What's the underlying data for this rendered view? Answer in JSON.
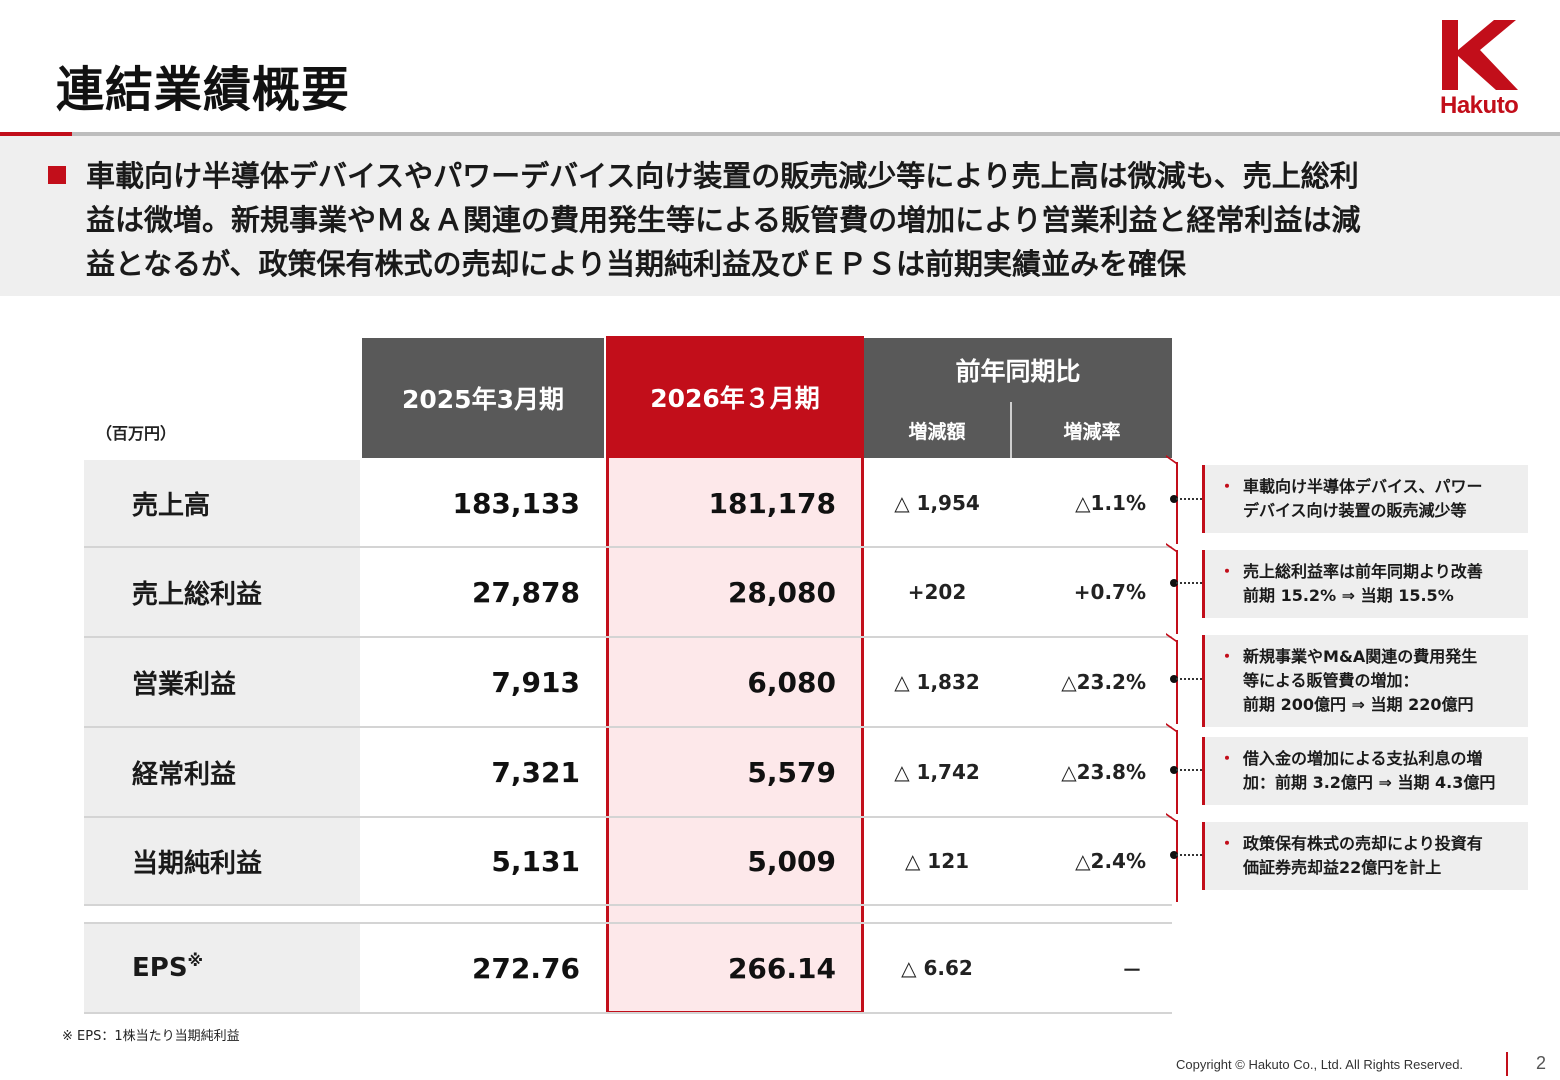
{
  "header": {
    "title": "連結業績概要",
    "logo_text": "Hakuto"
  },
  "summary": {
    "lines": [
      "車載向け半導体デバイスやパワーデバイス向け装置の販売減少等により売上高は微減も、売上総利",
      "益は微増。新規事業やＭ＆Ａ関連の費用発生等による販管費の増加により営業利益と経常利益は減",
      "益となるが、政策保有株式の売却により当期純利益及びＥＰＳは前期実績並みを確保"
    ]
  },
  "table": {
    "unit": "（百万円）",
    "headers": {
      "fy2025": "2025年3月期",
      "fy2026": "2026年３月期",
      "yoy": "前年同期比",
      "change_amount": "増減額",
      "change_rate": "増減率"
    },
    "rows": [
      {
        "label": "売上高",
        "fy2025": "183,133",
        "fy2026": "181,178",
        "change_amount": "△ 1,954",
        "change_rate": "△1.1%"
      },
      {
        "label": "売上総利益",
        "fy2025": "27,878",
        "fy2026": "28,080",
        "change_amount": "+202",
        "change_rate": "+0.7%"
      },
      {
        "label": "営業利益",
        "fy2025": "7,913",
        "fy2026": "6,080",
        "change_amount": "△ 1,832",
        "change_rate": "△23.2%"
      },
      {
        "label": "経常利益",
        "fy2025": "7,321",
        "fy2026": "5,579",
        "change_amount": "△ 1,742",
        "change_rate": "△23.8%"
      },
      {
        "label": "当期純利益",
        "fy2025": "5,131",
        "fy2026": "5,009",
        "change_amount": "△ 121",
        "change_rate": "△2.4%"
      }
    ],
    "eps": {
      "label": "EPS",
      "mark": "※",
      "fy2025": "272.76",
      "fy2026": "266.14",
      "change_amount": "△ 6.62",
      "change_rate": "－"
    }
  },
  "notes": [
    {
      "bullet": "・",
      "lines": [
        "車載向け半導体デバイス、パワー",
        "デバイス向け装置の販売減少等"
      ]
    },
    {
      "bullet": "・",
      "lines": [
        "売上総利益率は前年同期より改善",
        "前期 15.2% ⇒ 当期 15.5%"
      ]
    },
    {
      "bullet": "・",
      "lines": [
        "新規事業やM&A関連の費用発生",
        "等による販管費の増加：",
        "前期 200億円 ⇒ 当期 220億円"
      ]
    },
    {
      "bullet": "・",
      "lines": [
        "借入金の増加による支払利息の増",
        "加：前期 3.2億円 ⇒ 当期 4.3億円"
      ]
    },
    {
      "bullet": "・",
      "lines": [
        "政策保有株式の売却により投資有",
        "価証券売却益22億円を計上"
      ]
    }
  ],
  "footer": {
    "footnote": "※ EPS：1株当たり当期純利益",
    "copyright": "Copyright © Hakuto Co., Ltd. All Rights Reserved.",
    "page_number": "2"
  },
  "colors": {
    "accent": "#c20e1a",
    "header_grey": "#595959",
    "highlight_fill": "#fde8ea",
    "label_bg": "#eeeeee"
  }
}
